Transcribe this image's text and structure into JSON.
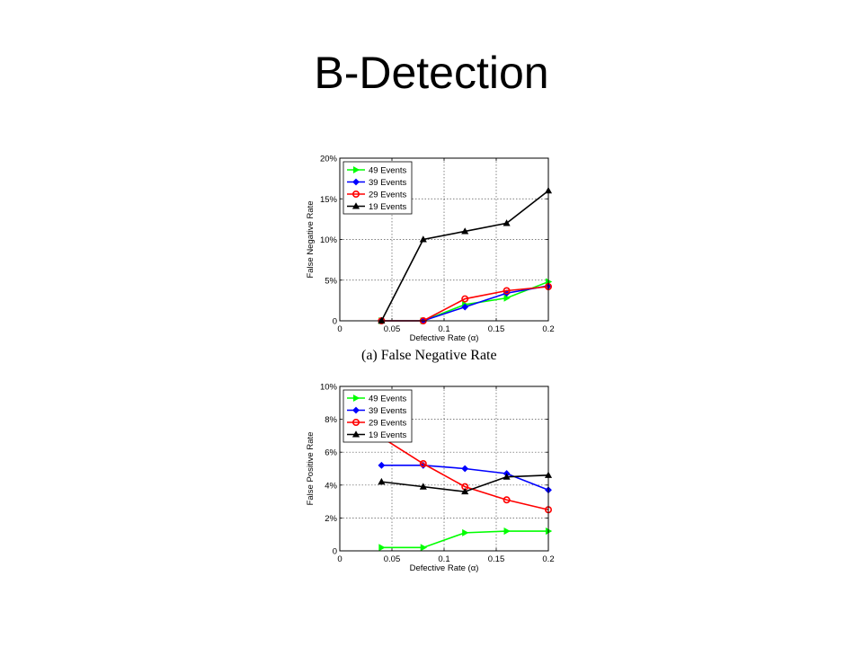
{
  "slide": {
    "title": "B-Detection"
  },
  "chart_data": [
    {
      "type": "line",
      "caption": "(a) False Negative Rate",
      "xlabel": "Defective Rate (α)",
      "ylabel": "False Negative Rate",
      "xlim": [
        0,
        0.2
      ],
      "ylim": [
        0,
        20
      ],
      "xticks": [
        0,
        0.05,
        0.1,
        0.15,
        0.2
      ],
      "xtick_labels": [
        "0",
        "0.05",
        "0.1",
        "0.15",
        "0.2"
      ],
      "yticks": [
        0,
        5,
        10,
        15,
        20
      ],
      "ytick_labels": [
        "0",
        "5%",
        "10%",
        "15%",
        "20%"
      ],
      "grid": true,
      "legend_position": "top-left",
      "series": [
        {
          "name": "49 Events",
          "color": "#00ff00",
          "marker": "triangle-right",
          "x": [
            0.04,
            0.08,
            0.12,
            0.16,
            0.2
          ],
          "values": [
            0,
            0,
            2,
            2.8,
            4.8
          ]
        },
        {
          "name": "39 Events",
          "color": "#0000ff",
          "marker": "diamond",
          "x": [
            0.04,
            0.08,
            0.12,
            0.16,
            0.2
          ],
          "values": [
            0,
            0,
            1.7,
            3.4,
            4.3
          ]
        },
        {
          "name": "29 Events",
          "color": "#ff0000",
          "marker": "circle",
          "x": [
            0.04,
            0.08,
            0.12,
            0.16,
            0.2
          ],
          "values": [
            0,
            0,
            2.7,
            3.7,
            4.2
          ]
        },
        {
          "name": "19 Events",
          "color": "#000000",
          "marker": "triangle-up",
          "x": [
            0.04,
            0.08,
            0.12,
            0.16,
            0.2
          ],
          "values": [
            0,
            10,
            11,
            12,
            16
          ]
        }
      ]
    },
    {
      "type": "line",
      "caption": "",
      "xlabel": "Defective Rate (α)",
      "ylabel": "False Positive Rate",
      "xlim": [
        0,
        0.2
      ],
      "ylim": [
        0,
        10
      ],
      "xticks": [
        0,
        0.05,
        0.1,
        0.15,
        0.2
      ],
      "xtick_labels": [
        "0",
        "0.05",
        "0.1",
        "0.15",
        "0.2"
      ],
      "yticks": [
        0,
        2,
        4,
        6,
        8,
        10
      ],
      "ytick_labels": [
        "0",
        "2%",
        "4%",
        "6%",
        "8%",
        "10%"
      ],
      "grid": true,
      "legend_position": "top-left",
      "series": [
        {
          "name": "49 Events",
          "color": "#00ff00",
          "marker": "triangle-right",
          "x": [
            0.04,
            0.08,
            0.12,
            0.16,
            0.2
          ],
          "values": [
            0.2,
            0.2,
            1.1,
            1.2,
            1.2
          ]
        },
        {
          "name": "39 Events",
          "color": "#0000ff",
          "marker": "diamond",
          "x": [
            0.04,
            0.08,
            0.12,
            0.16,
            0.2
          ],
          "values": [
            5.2,
            5.2,
            5.0,
            4.7,
            3.7
          ]
        },
        {
          "name": "29 Events",
          "color": "#ff0000",
          "marker": "circle",
          "x": [
            0.04,
            0.08,
            0.12,
            0.16,
            0.2
          ],
          "values": [
            6.9,
            5.3,
            3.9,
            3.1,
            2.5
          ]
        },
        {
          "name": "19 Events",
          "color": "#000000",
          "marker": "triangle-up",
          "x": [
            0.04,
            0.08,
            0.12,
            0.16,
            0.2
          ],
          "values": [
            4.2,
            3.9,
            3.6,
            4.5,
            4.6
          ]
        }
      ]
    }
  ]
}
